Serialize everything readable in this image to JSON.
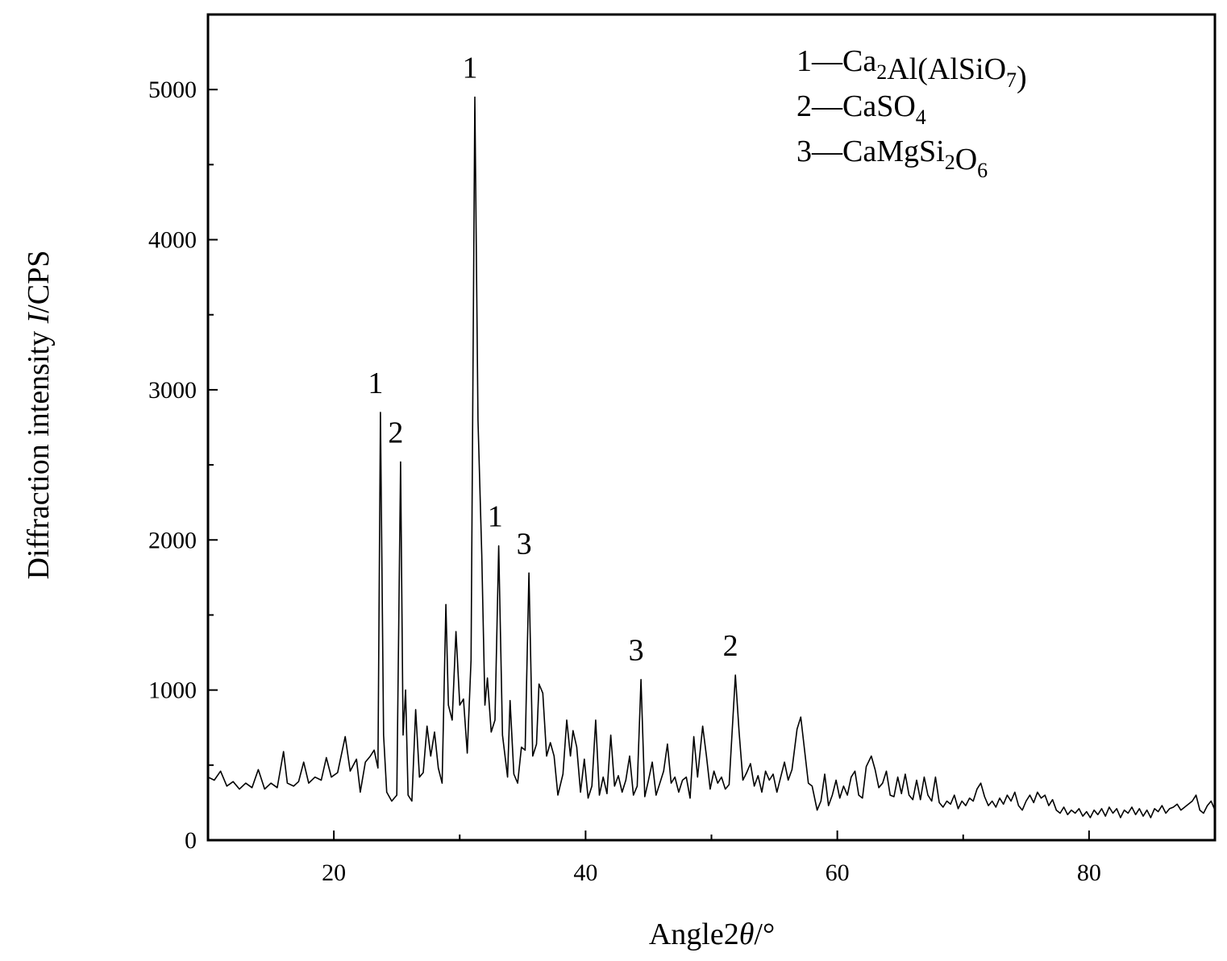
{
  "chart_data": {
    "type": "line",
    "xlabel": {
      "text": "Angle2",
      "symbol": "θ",
      "unit": "/°"
    },
    "ylabel": {
      "text": "Diffraction intensity ",
      "symbol": "I",
      "unit": "/CPS"
    },
    "xlim": [
      10,
      90
    ],
    "ylim": [
      0,
      5500
    ],
    "xticks": [
      20,
      40,
      60,
      80
    ],
    "xtick_labels": [
      "20",
      "40",
      "60",
      "80"
    ],
    "yticks": [
      0,
      1000,
      2000,
      3000,
      4000,
      5000
    ],
    "ytick_labels": [
      "0",
      "1000",
      "2000",
      "3000",
      "4000",
      "5000"
    ],
    "grid": false,
    "line_color": "#000000",
    "legend": [
      {
        "num": "1",
        "dash": "—",
        "parts": [
          [
            "Ca",
            ""
          ],
          [
            "2",
            "sub"
          ],
          [
            "Al(AlSiO",
            ""
          ],
          [
            "7",
            "sub"
          ],
          [
            ")",
            ""
          ]
        ]
      },
      {
        "num": "2",
        "dash": "—",
        "parts": [
          [
            "CaSO",
            ""
          ],
          [
            "4",
            "sub"
          ]
        ]
      },
      {
        "num": "3",
        "dash": "—",
        "parts": [
          [
            "CaMgSi",
            ""
          ],
          [
            "2",
            "sub"
          ],
          [
            "O",
            ""
          ],
          [
            "6",
            "sub"
          ]
        ]
      }
    ],
    "peak_labels": [
      {
        "x": 23.7,
        "y": 2850,
        "label": "1"
      },
      {
        "x": 25.3,
        "y": 2520,
        "label": "2"
      },
      {
        "x": 31.2,
        "y": 4950,
        "label": "1"
      },
      {
        "x": 33.2,
        "y": 1960,
        "label": "1"
      },
      {
        "x": 35.5,
        "y": 1780,
        "label": "3"
      },
      {
        "x": 44.4,
        "y": 1070,
        "label": "3"
      },
      {
        "x": 51.9,
        "y": 1100,
        "label": "2"
      }
    ],
    "series": [
      {
        "points": [
          [
            10.0,
            420
          ],
          [
            10.5,
            400
          ],
          [
            11.0,
            460
          ],
          [
            11.5,
            360
          ],
          [
            12.0,
            390
          ],
          [
            12.5,
            340
          ],
          [
            13.0,
            380
          ],
          [
            13.5,
            350
          ],
          [
            14.0,
            470
          ],
          [
            14.5,
            340
          ],
          [
            15.0,
            380
          ],
          [
            15.5,
            350
          ],
          [
            16.0,
            590
          ],
          [
            16.3,
            380
          ],
          [
            16.8,
            360
          ],
          [
            17.2,
            390
          ],
          [
            17.6,
            520
          ],
          [
            18.0,
            380
          ],
          [
            18.5,
            420
          ],
          [
            19.0,
            400
          ],
          [
            19.4,
            550
          ],
          [
            19.8,
            420
          ],
          [
            20.3,
            450
          ],
          [
            20.9,
            690
          ],
          [
            21.3,
            460
          ],
          [
            21.8,
            540
          ],
          [
            22.1,
            320
          ],
          [
            22.5,
            520
          ],
          [
            22.9,
            560
          ],
          [
            23.2,
            600
          ],
          [
            23.5,
            480
          ],
          [
            23.7,
            2850
          ],
          [
            23.95,
            700
          ],
          [
            24.2,
            320
          ],
          [
            24.6,
            260
          ],
          [
            25.0,
            300
          ],
          [
            25.3,
            2520
          ],
          [
            25.5,
            700
          ],
          [
            25.7,
            1000
          ],
          [
            25.9,
            300
          ],
          [
            26.2,
            260
          ],
          [
            26.5,
            870
          ],
          [
            26.8,
            420
          ],
          [
            27.1,
            450
          ],
          [
            27.4,
            760
          ],
          [
            27.7,
            560
          ],
          [
            28.0,
            720
          ],
          [
            28.3,
            480
          ],
          [
            28.6,
            380
          ],
          [
            28.9,
            1570
          ],
          [
            29.1,
            900
          ],
          [
            29.4,
            800
          ],
          [
            29.7,
            1390
          ],
          [
            30.0,
            900
          ],
          [
            30.3,
            940
          ],
          [
            30.6,
            580
          ],
          [
            30.9,
            1200
          ],
          [
            31.2,
            4950
          ],
          [
            31.45,
            2800
          ],
          [
            31.75,
            1900
          ],
          [
            32.0,
            900
          ],
          [
            32.2,
            1080
          ],
          [
            32.5,
            720
          ],
          [
            32.8,
            800
          ],
          [
            33.1,
            1960
          ],
          [
            33.4,
            700
          ],
          [
            33.8,
            420
          ],
          [
            34.0,
            930
          ],
          [
            34.3,
            440
          ],
          [
            34.6,
            380
          ],
          [
            34.9,
            620
          ],
          [
            35.2,
            600
          ],
          [
            35.5,
            1780
          ],
          [
            35.8,
            560
          ],
          [
            36.1,
            640
          ],
          [
            36.3,
            1040
          ],
          [
            36.6,
            980
          ],
          [
            36.9,
            560
          ],
          [
            37.2,
            650
          ],
          [
            37.5,
            560
          ],
          [
            37.8,
            300
          ],
          [
            38.2,
            440
          ],
          [
            38.5,
            800
          ],
          [
            38.8,
            560
          ],
          [
            39.0,
            730
          ],
          [
            39.3,
            620
          ],
          [
            39.6,
            320
          ],
          [
            39.9,
            540
          ],
          [
            40.2,
            280
          ],
          [
            40.5,
            360
          ],
          [
            40.8,
            800
          ],
          [
            41.1,
            300
          ],
          [
            41.4,
            420
          ],
          [
            41.7,
            310
          ],
          [
            42.0,
            700
          ],
          [
            42.3,
            360
          ],
          [
            42.6,
            430
          ],
          [
            42.9,
            320
          ],
          [
            43.2,
            400
          ],
          [
            43.5,
            560
          ],
          [
            43.8,
            300
          ],
          [
            44.1,
            360
          ],
          [
            44.4,
            1070
          ],
          [
            44.7,
            290
          ],
          [
            45.0,
            400
          ],
          [
            45.3,
            520
          ],
          [
            45.6,
            300
          ],
          [
            45.9,
            380
          ],
          [
            46.2,
            460
          ],
          [
            46.5,
            640
          ],
          [
            46.8,
            380
          ],
          [
            47.1,
            420
          ],
          [
            47.4,
            320
          ],
          [
            47.7,
            400
          ],
          [
            48.0,
            420
          ],
          [
            48.3,
            280
          ],
          [
            48.6,
            690
          ],
          [
            48.9,
            420
          ],
          [
            49.3,
            760
          ],
          [
            49.6,
            560
          ],
          [
            49.9,
            340
          ],
          [
            50.2,
            460
          ],
          [
            50.5,
            380
          ],
          [
            50.8,
            420
          ],
          [
            51.1,
            340
          ],
          [
            51.4,
            370
          ],
          [
            51.9,
            1100
          ],
          [
            52.2,
            720
          ],
          [
            52.5,
            400
          ],
          [
            52.8,
            450
          ],
          [
            53.1,
            510
          ],
          [
            53.4,
            360
          ],
          [
            53.7,
            430
          ],
          [
            54.0,
            320
          ],
          [
            54.3,
            460
          ],
          [
            54.6,
            400
          ],
          [
            54.9,
            440
          ],
          [
            55.2,
            320
          ],
          [
            55.5,
            420
          ],
          [
            55.8,
            520
          ],
          [
            56.1,
            400
          ],
          [
            56.4,
            470
          ],
          [
            56.8,
            740
          ],
          [
            57.1,
            820
          ],
          [
            57.4,
            600
          ],
          [
            57.7,
            380
          ],
          [
            58.0,
            360
          ],
          [
            58.4,
            200
          ],
          [
            58.7,
            260
          ],
          [
            59.0,
            440
          ],
          [
            59.3,
            230
          ],
          [
            59.6,
            300
          ],
          [
            59.9,
            400
          ],
          [
            60.2,
            280
          ],
          [
            60.5,
            360
          ],
          [
            60.8,
            300
          ],
          [
            61.1,
            420
          ],
          [
            61.4,
            460
          ],
          [
            61.7,
            300
          ],
          [
            62.0,
            280
          ],
          [
            62.3,
            490
          ],
          [
            62.7,
            560
          ],
          [
            63.0,
            470
          ],
          [
            63.3,
            350
          ],
          [
            63.6,
            380
          ],
          [
            63.9,
            460
          ],
          [
            64.2,
            300
          ],
          [
            64.5,
            290
          ],
          [
            64.8,
            420
          ],
          [
            65.1,
            310
          ],
          [
            65.4,
            440
          ],
          [
            65.7,
            300
          ],
          [
            66.0,
            270
          ],
          [
            66.3,
            400
          ],
          [
            66.6,
            270
          ],
          [
            66.9,
            420
          ],
          [
            67.2,
            300
          ],
          [
            67.5,
            260
          ],
          [
            67.8,
            420
          ],
          [
            68.1,
            250
          ],
          [
            68.4,
            220
          ],
          [
            68.7,
            260
          ],
          [
            69.0,
            240
          ],
          [
            69.3,
            300
          ],
          [
            69.6,
            210
          ],
          [
            69.9,
            260
          ],
          [
            70.2,
            230
          ],
          [
            70.5,
            280
          ],
          [
            70.8,
            260
          ],
          [
            71.1,
            340
          ],
          [
            71.4,
            380
          ],
          [
            71.7,
            290
          ],
          [
            72.0,
            230
          ],
          [
            72.3,
            260
          ],
          [
            72.6,
            220
          ],
          [
            72.9,
            280
          ],
          [
            73.2,
            240
          ],
          [
            73.5,
            300
          ],
          [
            73.8,
            260
          ],
          [
            74.1,
            320
          ],
          [
            74.4,
            230
          ],
          [
            74.7,
            200
          ],
          [
            75.0,
            260
          ],
          [
            75.3,
            300
          ],
          [
            75.6,
            250
          ],
          [
            75.9,
            320
          ],
          [
            76.2,
            280
          ],
          [
            76.5,
            300
          ],
          [
            76.8,
            230
          ],
          [
            77.1,
            270
          ],
          [
            77.4,
            200
          ],
          [
            77.7,
            180
          ],
          [
            78.0,
            220
          ],
          [
            78.3,
            170
          ],
          [
            78.6,
            200
          ],
          [
            78.9,
            180
          ],
          [
            79.2,
            210
          ],
          [
            79.5,
            160
          ],
          [
            79.8,
            190
          ],
          [
            80.1,
            150
          ],
          [
            80.4,
            200
          ],
          [
            80.7,
            170
          ],
          [
            81.0,
            210
          ],
          [
            81.3,
            160
          ],
          [
            81.6,
            220
          ],
          [
            81.9,
            180
          ],
          [
            82.2,
            210
          ],
          [
            82.5,
            150
          ],
          [
            82.8,
            200
          ],
          [
            83.1,
            180
          ],
          [
            83.4,
            220
          ],
          [
            83.7,
            170
          ],
          [
            84.0,
            210
          ],
          [
            84.3,
            160
          ],
          [
            84.6,
            200
          ],
          [
            84.9,
            150
          ],
          [
            85.2,
            210
          ],
          [
            85.5,
            190
          ],
          [
            85.8,
            230
          ],
          [
            86.1,
            180
          ],
          [
            86.4,
            210
          ],
          [
            86.7,
            220
          ],
          [
            87.0,
            240
          ],
          [
            87.3,
            200
          ],
          [
            87.6,
            220
          ],
          [
            87.9,
            240
          ],
          [
            88.2,
            260
          ],
          [
            88.5,
            300
          ],
          [
            88.8,
            200
          ],
          [
            89.1,
            180
          ],
          [
            89.4,
            230
          ],
          [
            89.7,
            260
          ],
          [
            90.0,
            200
          ]
        ]
      }
    ]
  }
}
